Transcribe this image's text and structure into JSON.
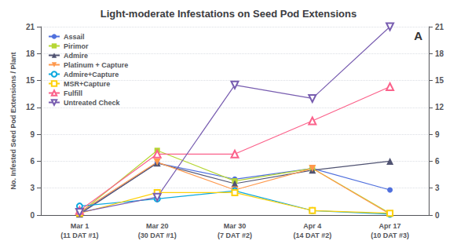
{
  "chart_data": {
    "type": "line",
    "title": "Light-moderate Infestations on Seed Pod Extensions",
    "y_label": "No. Infested Seed Pod Extensions / Plant",
    "categories": [
      "Mar 1\n(11 DAT #1)",
      "Mar 20\n(30 DAT #1)",
      "Mar 30\n(7 DAT #2)",
      "Apr 4\n(14 DAT #2)",
      "Apr 17\n(10 DAT #3)"
    ],
    "series": [
      {
        "name": "Assail",
        "values": [
          0.2,
          5.8,
          4.0,
          5.2,
          2.8
        ],
        "marker": "circle"
      },
      {
        "name": "Pirimor",
        "values": [
          0.2,
          7.2,
          3.8,
          5.2,
          0.2
        ],
        "marker": "square"
      },
      {
        "name": "Admire",
        "values": [
          0.1,
          5.8,
          3.5,
          5.0,
          6.0
        ],
        "marker": "triangle-up"
      },
      {
        "name": "Platinum + Capture",
        "values": [
          0.3,
          5.9,
          2.8,
          5.2,
          0.1
        ],
        "marker": "triangle-down"
      },
      {
        "name": "Admire+Capture",
        "values": [
          1.0,
          1.8,
          2.7,
          0.5,
          0.1
        ],
        "marker": "circle-open"
      },
      {
        "name": "MSR+Capture",
        "values": [
          0.2,
          2.5,
          2.5,
          0.5,
          0.2
        ],
        "marker": "square-open"
      },
      {
        "name": "Fulfill",
        "values": [
          0.5,
          6.8,
          6.8,
          10.5,
          14.3
        ],
        "marker": "triangle-up-open"
      },
      {
        "name": "Untreated Check",
        "values": [
          0.3,
          2.0,
          14.5,
          13.0,
          21.0
        ],
        "marker": "triangle-down-open"
      }
    ],
    "ylim": [
      0,
      21
    ],
    "yticks": [
      0,
      3,
      6,
      9,
      12,
      15,
      18,
      21
    ],
    "y2lim": [
      0,
      21
    ],
    "y2ticks": [
      0,
      3,
      6,
      9,
      12,
      15,
      18,
      21
    ],
    "annotations": [
      "A"
    ],
    "grid": true,
    "legend": "upper left"
  }
}
